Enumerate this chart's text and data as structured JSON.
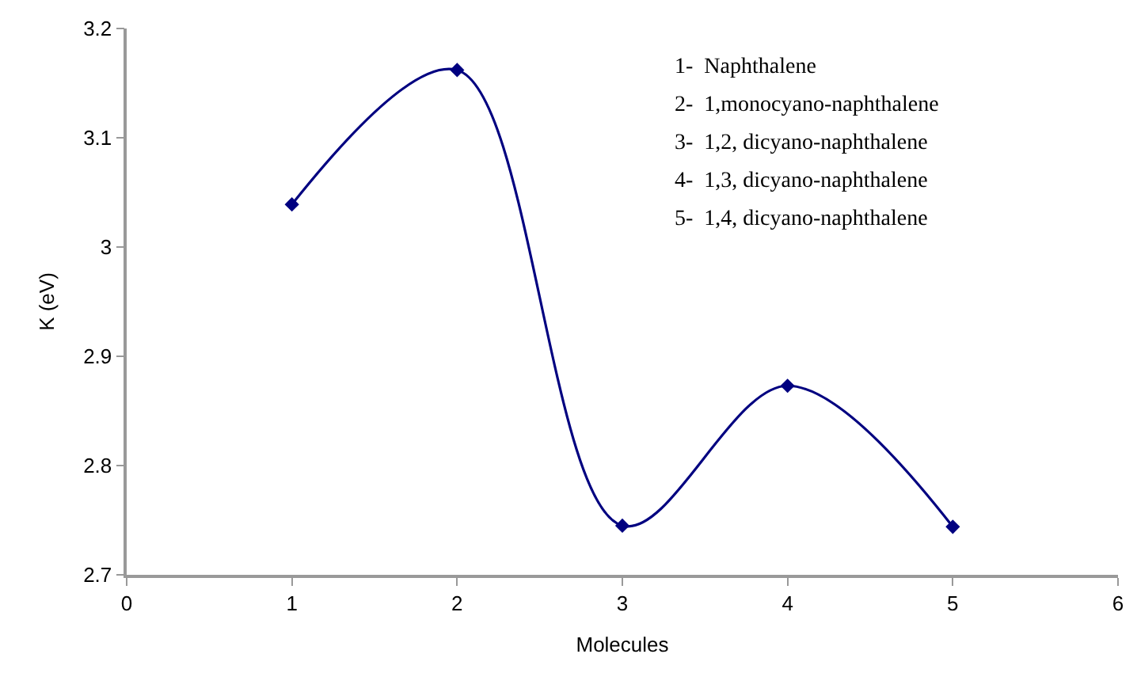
{
  "chart_data": {
    "type": "line",
    "xlabel": "Molecules",
    "ylabel": "K (eV)",
    "x": [
      1,
      2,
      3,
      4,
      5
    ],
    "series": [
      {
        "color": "#000080",
        "values": [
          3.039,
          3.162,
          2.745,
          2.873,
          2.744
        ]
      }
    ],
    "xlim": [
      0,
      6
    ],
    "xticks": [
      0,
      1,
      2,
      3,
      4,
      5,
      6
    ],
    "ylim": [
      2.7,
      3.2
    ],
    "yticks": [
      2.7,
      2.8,
      2.9,
      3,
      3.1,
      3.2
    ],
    "marker": "diamond",
    "line_style": "solid",
    "annotations": [
      "1-  Naphthalene",
      "2-  1,monocyano-naphthalene",
      "3-  1,2, dicyano-naphthalene",
      "4-  1,3, dicyano-naphthalene",
      "5-  1,4, dicyano-naphthalene"
    ]
  }
}
